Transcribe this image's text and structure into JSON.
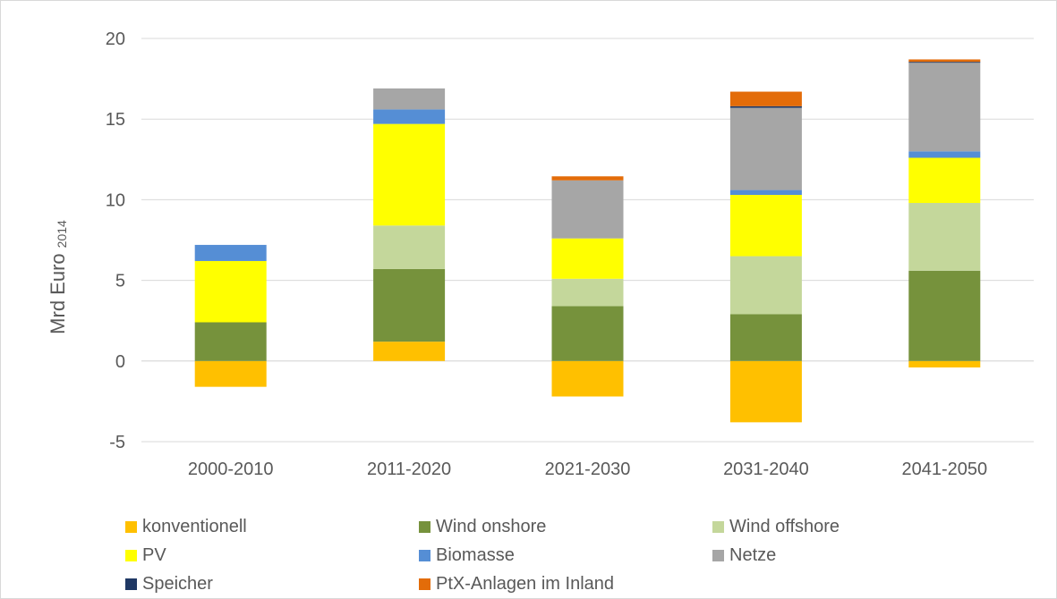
{
  "chart_data": {
    "type": "bar",
    "stacked": true,
    "categories": [
      "2000-2010",
      "2011-2020",
      "2021-2030",
      "2031-2040",
      "2041-2050"
    ],
    "ylabel": "Mrd Euro",
    "ylabel_subscript": "2014",
    "ylim": [
      -5,
      20
    ],
    "yticks": [
      -5,
      0,
      5,
      10,
      15,
      20
    ],
    "grid": true,
    "legend_position": "bottom",
    "series": [
      {
        "name": "konventionell",
        "color": "#FFC000",
        "values": [
          -1.6,
          1.2,
          -2.2,
          -3.8,
          -0.4
        ]
      },
      {
        "name": "Wind onshore",
        "color": "#76923C",
        "values": [
          2.4,
          4.5,
          3.4,
          2.9,
          5.6
        ]
      },
      {
        "name": "Wind offshore",
        "color": "#C4D79B",
        "values": [
          0,
          2.7,
          1.7,
          3.6,
          4.2
        ]
      },
      {
        "name": "PV",
        "color": "#FFFF00",
        "values": [
          3.8,
          6.3,
          2.5,
          3.8,
          2.8
        ]
      },
      {
        "name": "Biomasse",
        "color": "#558ED5",
        "values": [
          1.0,
          0.9,
          0,
          0.3,
          0.4
        ]
      },
      {
        "name": "Netze",
        "color": "#A6A6A6",
        "values": [
          0,
          1.3,
          3.6,
          5.1,
          5.5
        ]
      },
      {
        "name": "Speicher",
        "color": "#1F3864",
        "values": [
          0,
          0,
          0,
          0.1,
          0.05
        ]
      },
      {
        "name": "PtX-Anlagen im Inland",
        "color": "#E36C09",
        "values": [
          0,
          0,
          0.25,
          0.9,
          0.15
        ]
      }
    ]
  }
}
